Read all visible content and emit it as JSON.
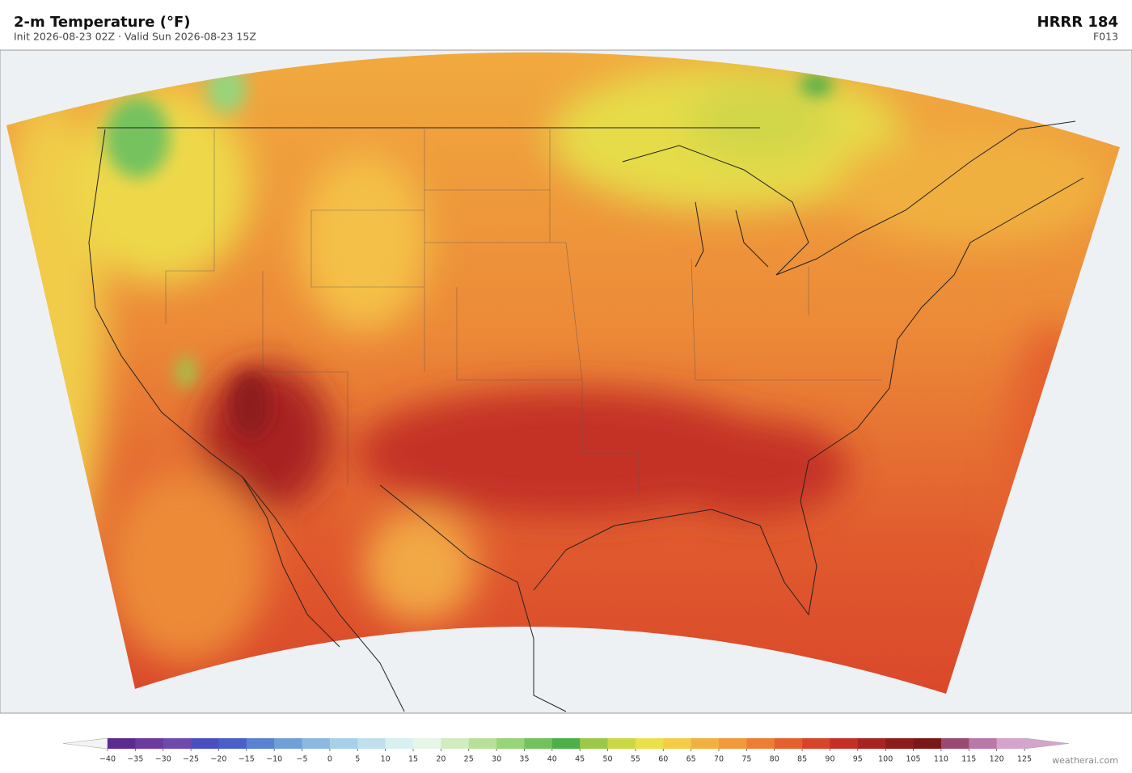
{
  "header": {
    "title": "2-m Temperature  (°F)",
    "subtitle": "Init 2026-08-23 02Z  ·  Valid Sun 2026-08-23 15Z",
    "model": "HRRR  184",
    "forecast_hour": "F013"
  },
  "colorbar": {
    "ticks": [
      {
        "value": -40,
        "label": "−40"
      },
      {
        "value": -35,
        "label": "−35"
      },
      {
        "value": -30,
        "label": "−30"
      },
      {
        "value": -25,
        "label": "−25"
      },
      {
        "value": -20,
        "label": "−20"
      },
      {
        "value": -15,
        "label": "−15"
      },
      {
        "value": -10,
        "label": "−10"
      },
      {
        "value": -5,
        "label": "−5"
      },
      0,
      5,
      10,
      15,
      20,
      25,
      30,
      35,
      40,
      45,
      50,
      55,
      60,
      65,
      70,
      75,
      80,
      85,
      90,
      95,
      100,
      105,
      110,
      115,
      120,
      125
    ],
    "colors": [
      "#5b2c8f",
      "#6a3a9e",
      "#6e4aae",
      "#4a4fbf",
      "#4a60c8",
      "#5a82d0",
      "#70a0d8",
      "#8cb8e0",
      "#a8d0e8",
      "#c0e0ee",
      "#d8f0f2",
      "#e6f6e6",
      "#d2ecc0",
      "#b8e09a",
      "#98d47a",
      "#74c25e",
      "#4caf4a",
      "#9cc84a",
      "#cad846",
      "#eae04a",
      "#f4cc48",
      "#f2b040",
      "#f09a3c",
      "#ec7e34",
      "#e4602e",
      "#d8442a",
      "#c43026",
      "#a82422",
      "#8e1c1c",
      "#7a1818",
      "#9a4a70",
      "#b878a8",
      "#d4a4cc"
    ],
    "under_color": "#f4f4f4",
    "over_color": "#d4a4cc"
  },
  "footer": {
    "credit": "weatherai.com"
  }
}
